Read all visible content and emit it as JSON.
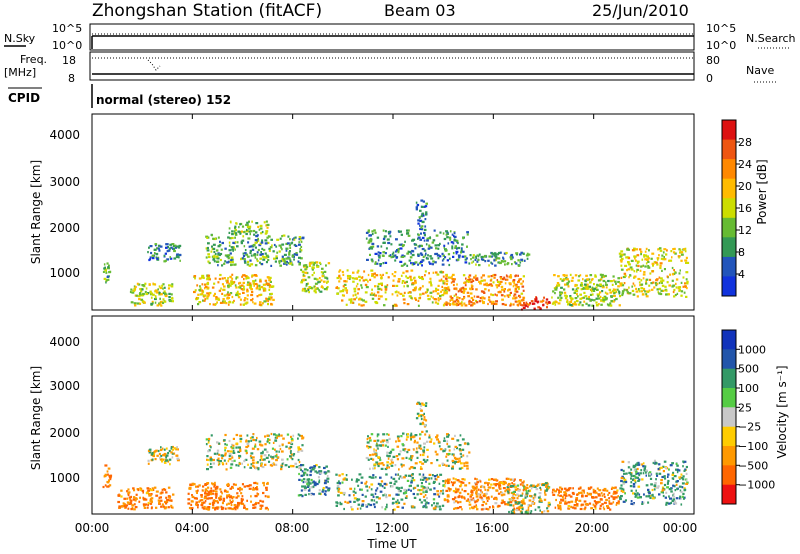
{
  "header": {
    "title": "Zhongshan Station (fitACF)",
    "beam": "Beam 03",
    "date": "25/Jun/2010"
  },
  "summary": {
    "nsky_label": "N.Sky",
    "nsky_ticks": [
      "10^5",
      "10^0"
    ],
    "nsearch_label": "N.Search",
    "nsearch_ticks": [
      "10^5",
      "10^0"
    ],
    "freq_label": "Freq.",
    "freq_unit": "[MHz]",
    "freq_ticks": [
      "18",
      "8"
    ],
    "nave_label": "Nave",
    "nave_ticks": [
      "80",
      "0"
    ],
    "cpid_label": "CPID",
    "cpid_text": "normal (stereo) 152"
  },
  "axes": {
    "ylabel": "Slant Range [km]",
    "xlabel": "Time UT",
    "yticks": [
      "4000",
      "3000",
      "2000",
      "1000"
    ],
    "xticks": [
      "00:00",
      "04:00",
      "08:00",
      "12:00",
      "16:00",
      "20:00",
      "00:00"
    ]
  },
  "power_scale": {
    "label": "Power [dB]",
    "ticks": [
      "28",
      "24",
      "20",
      "16",
      "12",
      "8",
      "4"
    ],
    "colors": [
      "#dd1111",
      "#ee5511",
      "#ff8800",
      "#ffbb00",
      "#ccdd00",
      "#66bb33",
      "#339955",
      "#2255bb",
      "#1133dd"
    ]
  },
  "velocity_scale": {
    "label": "Velocity [m s⁻¹]",
    "ticks": [
      "1000",
      "500",
      "100",
      "25",
      "−25",
      "−100",
      "−500",
      "−1000"
    ],
    "colors": [
      "#1133bb",
      "#2255aa",
      "#339966",
      "#55cc44",
      "#c8c8c8",
      "#ffcc00",
      "#ff9900",
      "#ff6600",
      "#ee1111"
    ]
  },
  "chart_data": [
    {
      "type": "heatmap",
      "title": "Power",
      "xlabel": "Time UT",
      "ylabel": "Slant Range [km]",
      "xlim": [
        "00:00",
        "24:00"
      ],
      "ylim": [
        180,
        4600
      ],
      "colorbar": {
        "label": "Power [dB]",
        "range": [
          0,
          30
        ]
      },
      "scatter_regions": [
        {
          "t_start": 0.4,
          "t_end": 0.7,
          "range_min": 800,
          "range_max": 1300,
          "power_db": 10
        },
        {
          "t_start": 1.5,
          "t_end": 3.2,
          "range_min": 300,
          "range_max": 800,
          "power_db": 14
        },
        {
          "t_start": 2.2,
          "t_end": 3.5,
          "range_min": 1300,
          "range_max": 1700,
          "power_db": 6
        },
        {
          "t_start": 4.0,
          "t_end": 7.2,
          "range_min": 300,
          "range_max": 1000,
          "power_db": 18
        },
        {
          "t_start": 4.5,
          "t_end": 8.4,
          "range_min": 1200,
          "range_max": 1900,
          "power_db": 9
        },
        {
          "t_start": 5.4,
          "t_end": 7.0,
          "range_min": 1900,
          "range_max": 2200,
          "power_db": 12
        },
        {
          "t_start": 8.3,
          "t_end": 9.4,
          "range_min": 600,
          "range_max": 1300,
          "power_db": 14
        },
        {
          "t_start": 9.7,
          "t_end": 14.2,
          "range_min": 300,
          "range_max": 1100,
          "power_db": 18
        },
        {
          "t_start": 10.9,
          "t_end": 15.0,
          "range_min": 1200,
          "range_max": 2000,
          "power_db": 7
        },
        {
          "t_start": 12.9,
          "t_end": 13.3,
          "range_min": 2000,
          "range_max": 2700,
          "power_db": 6
        },
        {
          "t_start": 14.0,
          "t_end": 17.2,
          "range_min": 300,
          "range_max": 1000,
          "power_db": 22
        },
        {
          "t_start": 15.0,
          "t_end": 17.4,
          "range_min": 1200,
          "range_max": 1500,
          "power_db": 8
        },
        {
          "t_start": 17.0,
          "t_end": 18.2,
          "range_min": 200,
          "range_max": 500,
          "power_db": 28
        },
        {
          "t_start": 18.3,
          "t_end": 21.0,
          "range_min": 300,
          "range_max": 1000,
          "power_db": 14
        },
        {
          "t_start": 21.0,
          "t_end": 23.7,
          "range_min": 500,
          "range_max": 1600,
          "power_db": 16
        }
      ]
    },
    {
      "type": "heatmap",
      "title": "Velocity",
      "xlabel": "Time UT",
      "ylabel": "Slant Range [km]",
      "xlim": [
        "00:00",
        "24:00"
      ],
      "ylim": [
        180,
        4600
      ],
      "colorbar": {
        "label": "Velocity [m s⁻¹]",
        "range": [
          -1000,
          1000
        ]
      },
      "scatter_regions": [
        {
          "t_start": 0.4,
          "t_end": 0.7,
          "range_min": 800,
          "range_max": 1300,
          "velocity": -300
        },
        {
          "t_start": 1.0,
          "t_end": 3.2,
          "range_min": 300,
          "range_max": 800,
          "velocity": -300
        },
        {
          "t_start": 2.2,
          "t_end": 3.5,
          "range_min": 1300,
          "range_max": 1700,
          "velocity": 0
        },
        {
          "t_start": 3.8,
          "t_end": 7.0,
          "range_min": 300,
          "range_max": 900,
          "velocity": -350
        },
        {
          "t_start": 4.5,
          "t_end": 8.4,
          "range_min": 1200,
          "range_max": 2000,
          "velocity": 0
        },
        {
          "t_start": 8.2,
          "t_end": 9.4,
          "range_min": 600,
          "range_max": 1300,
          "velocity": 200
        },
        {
          "t_start": 9.7,
          "t_end": 14.0,
          "range_min": 300,
          "range_max": 1100,
          "velocity": 120
        },
        {
          "t_start": 10.9,
          "t_end": 15.0,
          "range_min": 1200,
          "range_max": 2000,
          "velocity": 0
        },
        {
          "t_start": 12.9,
          "t_end": 13.3,
          "range_min": 2000,
          "range_max": 2700,
          "velocity": 0
        },
        {
          "t_start": 14.0,
          "t_end": 17.2,
          "range_min": 300,
          "range_max": 1000,
          "velocity": -250
        },
        {
          "t_start": 16.5,
          "t_end": 18.2,
          "range_min": 200,
          "range_max": 900,
          "velocity": 0
        },
        {
          "t_start": 18.3,
          "t_end": 21.0,
          "range_min": 300,
          "range_max": 800,
          "velocity": -300
        },
        {
          "t_start": 21.0,
          "t_end": 23.7,
          "range_min": 400,
          "range_max": 1400,
          "velocity": 150
        }
      ]
    }
  ]
}
